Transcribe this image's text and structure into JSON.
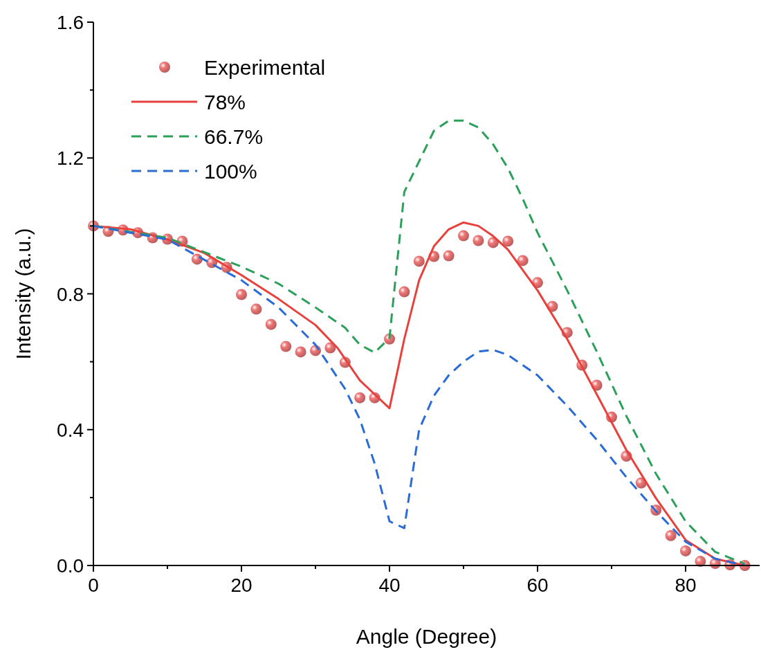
{
  "chart_data": {
    "type": "line",
    "xlabel": "Angle (Degree)",
    "ylabel": "Intensity (a.u.)",
    "xlim": [
      0,
      90
    ],
    "ylim": [
      0,
      1.6
    ],
    "xticks": [
      0,
      {
        "value": 10,
        "label": null
      },
      20,
      {
        "value": 30,
        "label": null
      },
      40,
      {
        "value": 50,
        "label": null
      },
      60,
      {
        "value": 70,
        "label": null
      },
      80
    ],
    "yticks": [
      {
        "value": 0,
        "label": "0.0"
      },
      {
        "value": 0.2,
        "label": null
      },
      0.4,
      {
        "value": 0.6,
        "label": null
      },
      0.8,
      {
        "value": 1.0,
        "label": null
      },
      1.2,
      {
        "value": 1.4,
        "label": null
      },
      1.6
    ],
    "legend": "top left",
    "grid": false,
    "series": [
      {
        "name": "Experimental",
        "type": "scatter",
        "marker": "circle",
        "color": "#f07878",
        "x": [
          0,
          2,
          4,
          6,
          8,
          10,
          12,
          14,
          16,
          18,
          20,
          22,
          24,
          26,
          28,
          30,
          32,
          34,
          36,
          38,
          40,
          42,
          44,
          46,
          48,
          50,
          52,
          54,
          56,
          58,
          60,
          62,
          64,
          66,
          68,
          70,
          72,
          74,
          76,
          78,
          80,
          82,
          84,
          86,
          88
        ],
        "values": [
          1.0,
          0.984,
          0.988,
          0.98,
          0.965,
          0.961,
          0.955,
          0.902,
          0.892,
          0.878,
          0.798,
          0.755,
          0.71,
          0.645,
          0.629,
          0.633,
          0.641,
          0.598,
          0.494,
          0.494,
          0.667,
          0.806,
          0.896,
          0.91,
          0.912,
          0.971,
          0.957,
          0.951,
          0.955,
          0.898,
          0.833,
          0.763,
          0.686,
          0.59,
          0.531,
          0.437,
          0.322,
          0.243,
          0.163,
          0.088,
          0.043,
          0.012,
          0.006,
          0.002,
          0.0
        ]
      },
      {
        "name": "78%",
        "line_style": "solid",
        "color": "#e8413c",
        "x": [
          0,
          5,
          10,
          15,
          20,
          25,
          30,
          33,
          36,
          38,
          40,
          42,
          44,
          46,
          48,
          50,
          52,
          54,
          56,
          58,
          60,
          64,
          68,
          72,
          76,
          80,
          84,
          88
        ],
        "values": [
          1.0,
          0.99,
          0.96,
          0.92,
          0.855,
          0.785,
          0.708,
          0.64,
          0.545,
          0.504,
          0.463,
          0.667,
          0.84,
          0.94,
          0.99,
          1.01,
          1.0,
          0.97,
          0.93,
          0.87,
          0.81,
          0.667,
          0.504,
          0.34,
          0.198,
          0.075,
          0.02,
          0.0
        ]
      },
      {
        "name": "66.7%",
        "line_style": "dashed",
        "color": "#2ca05a",
        "x": [
          0,
          10,
          20,
          25,
          30,
          34,
          36,
          38,
          40,
          42,
          44,
          46,
          48,
          50,
          52,
          54,
          56,
          58,
          60,
          64,
          68,
          72,
          76,
          80,
          84,
          88
        ],
        "values": [
          1.0,
          0.965,
          0.88,
          0.83,
          0.76,
          0.7,
          0.65,
          0.627,
          0.67,
          1.1,
          1.19,
          1.28,
          1.31,
          1.31,
          1.29,
          1.24,
          1.17,
          1.08,
          0.98,
          0.81,
          0.63,
          0.44,
          0.27,
          0.13,
          0.04,
          0.005
        ]
      },
      {
        "name": "100%",
        "line_style": "dashed",
        "color": "#2a6bd6",
        "x": [
          0,
          10,
          20,
          25,
          30,
          34,
          36,
          38,
          40,
          42,
          44,
          46,
          48,
          50,
          52,
          54,
          56,
          60,
          64,
          68,
          72,
          76,
          80,
          84,
          88
        ],
        "values": [
          1.0,
          0.96,
          0.84,
          0.76,
          0.65,
          0.52,
          0.43,
          0.3,
          0.13,
          0.11,
          0.4,
          0.5,
          0.56,
          0.6,
          0.63,
          0.635,
          0.62,
          0.56,
          0.47,
          0.37,
          0.26,
          0.16,
          0.07,
          0.02,
          0.0
        ]
      }
    ]
  }
}
